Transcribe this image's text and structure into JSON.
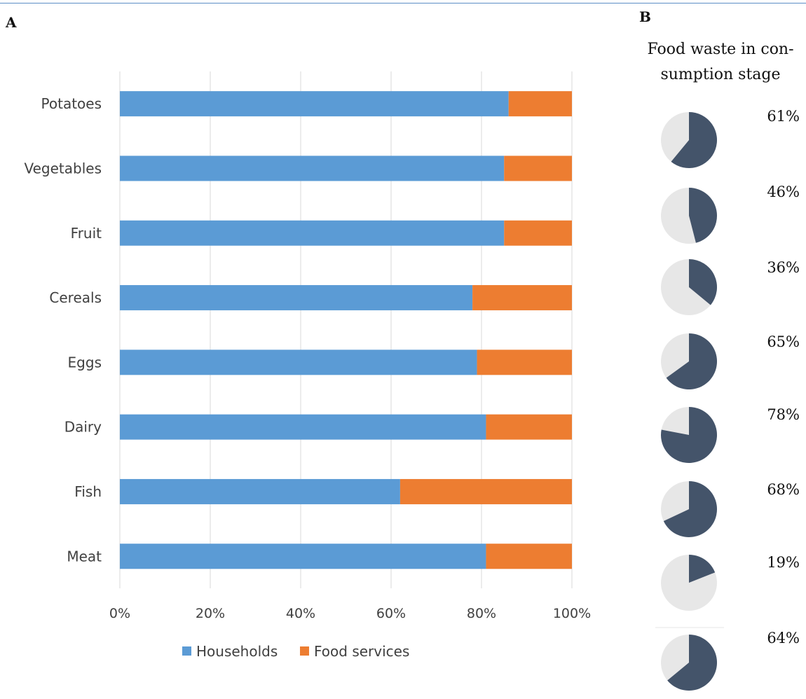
{
  "panel_a_label": "A",
  "panel_b_label": "B",
  "colors": {
    "households": "#5b9bd5",
    "food_services": "#ed7d31",
    "pie_fill": "#44546a",
    "pie_bg": "#e7e7e7",
    "grid": "#d9d9d9"
  },
  "chart_data": [
    {
      "type": "bar",
      "orientation": "horizontal",
      "stacked": true,
      "categories": [
        "Potatoes",
        "Vegetables",
        "Fruit",
        "Cereals",
        "Eggs",
        "Dairy",
        "Fish",
        "Meat"
      ],
      "series": [
        {
          "name": "Households",
          "values": [
            86,
            85,
            85,
            78,
            79,
            81,
            62,
            81
          ]
        },
        {
          "name": "Food services",
          "values": [
            14,
            15,
            15,
            22,
            21,
            19,
            38,
            19
          ]
        }
      ],
      "xlim": [
        0,
        100
      ],
      "xticks": [
        "0%",
        "20%",
        "40%",
        "60%",
        "80%",
        "100%"
      ],
      "xtick_values": [
        0,
        20,
        40,
        60,
        80,
        100
      ],
      "grid": true,
      "legend": "bottom"
    },
    {
      "type": "pie",
      "title_lines": [
        "Food waste in con-",
        "sumption stage"
      ],
      "categories": [
        "Potatoes",
        "Vegetables",
        "Fruit",
        "Cereals",
        "Eggs",
        "Dairy",
        "Fish",
        "Meat"
      ],
      "values": [
        61,
        46,
        36,
        65,
        78,
        68,
        19,
        64
      ],
      "labels": [
        "61%",
        "46%",
        "36%",
        "65%",
        "78%",
        "68%",
        "19%",
        "64%"
      ]
    }
  ]
}
